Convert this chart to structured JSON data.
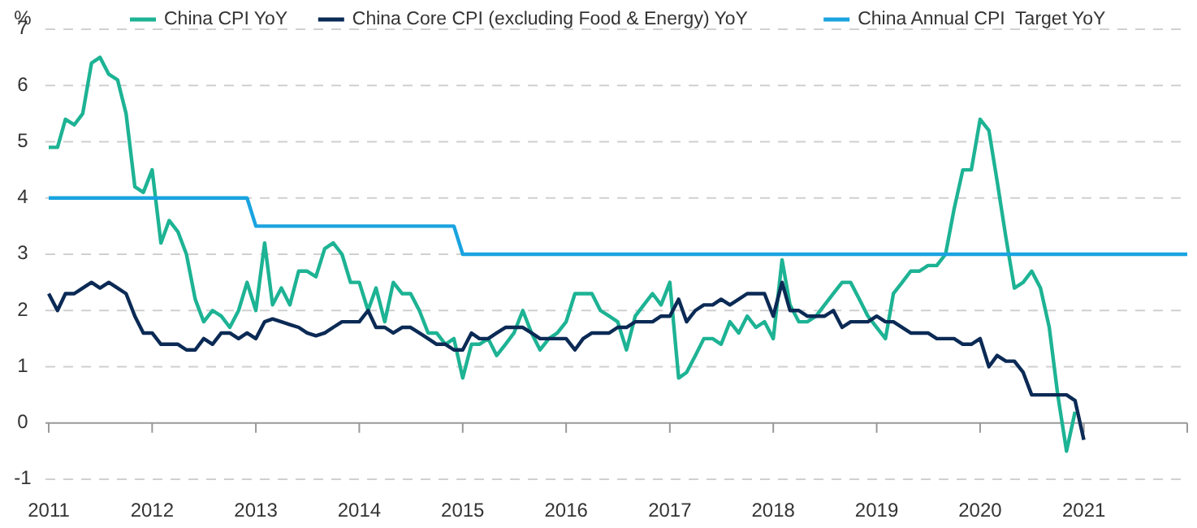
{
  "chart_data": {
    "type": "line",
    "ylabel": "%",
    "legend": "top",
    "grid": "y",
    "line_style": "solid",
    "x": [
      "2011-01",
      "2011-02",
      "2011-03",
      "2011-04",
      "2011-05",
      "2011-06",
      "2011-07",
      "2011-08",
      "2011-09",
      "2011-10",
      "2011-11",
      "2011-12",
      "2012-01",
      "2012-02",
      "2012-03",
      "2012-04",
      "2012-05",
      "2012-06",
      "2012-07",
      "2012-08",
      "2012-09",
      "2012-10",
      "2012-11",
      "2012-12",
      "2013-01",
      "2013-02",
      "2013-03",
      "2013-04",
      "2013-05",
      "2013-06",
      "2013-07",
      "2013-08",
      "2013-09",
      "2013-10",
      "2013-11",
      "2013-12",
      "2014-01",
      "2014-02",
      "2014-03",
      "2014-04",
      "2014-05",
      "2014-06",
      "2014-07",
      "2014-08",
      "2014-09",
      "2014-10",
      "2014-11",
      "2014-12",
      "2015-01",
      "2015-02",
      "2015-03",
      "2015-04",
      "2015-05",
      "2015-06",
      "2015-07",
      "2015-08",
      "2015-09",
      "2015-10",
      "2015-11",
      "2015-12",
      "2016-01",
      "2016-02",
      "2016-03",
      "2016-04",
      "2016-05",
      "2016-06",
      "2016-07",
      "2016-08",
      "2016-09",
      "2016-10",
      "2016-11",
      "2016-12",
      "2017-01",
      "2017-02",
      "2017-03",
      "2017-04",
      "2017-05",
      "2017-06",
      "2017-07",
      "2017-08",
      "2017-09",
      "2017-10",
      "2017-11",
      "2017-12",
      "2018-01",
      "2018-02",
      "2018-03",
      "2018-04",
      "2018-05",
      "2018-06",
      "2018-07",
      "2018-08",
      "2018-09",
      "2018-10",
      "2018-11",
      "2018-12",
      "2019-01",
      "2019-02",
      "2019-03",
      "2019-04",
      "2019-05",
      "2019-06",
      "2019-07",
      "2019-08",
      "2019-09",
      "2019-10",
      "2019-11",
      "2019-12",
      "2020-01",
      "2020-02",
      "2020-03",
      "2020-04",
      "2020-05",
      "2020-06",
      "2020-07",
      "2020-08",
      "2020-09",
      "2020-10",
      "2020-11",
      "2020-12",
      "2021-01"
    ],
    "xlim": [
      "2011-01",
      "2022-01"
    ],
    "xticks": [
      {
        "value": "2011-01",
        "label": "2011"
      },
      {
        "value": "2012-01",
        "label": "2012"
      },
      {
        "value": "2013-01",
        "label": "2013"
      },
      {
        "value": "2014-01",
        "label": "2014"
      },
      {
        "value": "2015-01",
        "label": "2015"
      },
      {
        "value": "2016-01",
        "label": "2016"
      },
      {
        "value": "2017-01",
        "label": "2017"
      },
      {
        "value": "2018-01",
        "label": "2018"
      },
      {
        "value": "2019-01",
        "label": "2019"
      },
      {
        "value": "2020-01",
        "label": "2020"
      },
      {
        "value": "2021-01",
        "label": "2021"
      },
      {
        "value": "2022-01",
        "label": null
      }
    ],
    "ylim": [
      -1,
      7
    ],
    "yticks": [
      -1,
      0,
      1,
      2,
      3,
      4,
      5,
      6,
      7
    ],
    "series": [
      {
        "name": "China CPI YoY",
        "color": "#1db394",
        "values": [
          4.9,
          4.9,
          5.4,
          5.3,
          5.5,
          6.4,
          6.5,
          6.2,
          6.1,
          5.5,
          4.2,
          4.1,
          4.5,
          3.2,
          3.6,
          3.4,
          3.0,
          2.2,
          1.8,
          2.0,
          1.9,
          1.7,
          2.0,
          2.5,
          2.0,
          3.2,
          2.1,
          2.4,
          2.1,
          2.7,
          2.7,
          2.6,
          3.1,
          3.2,
          3.0,
          2.5,
          2.5,
          2.0,
          2.4,
          1.8,
          2.5,
          2.3,
          2.3,
          2.0,
          1.6,
          1.6,
          1.4,
          1.5,
          0.8,
          1.4,
          1.4,
          1.5,
          1.2,
          1.4,
          1.6,
          2.0,
          1.6,
          1.3,
          1.5,
          1.6,
          1.8,
          2.3,
          2.3,
          2.3,
          2.0,
          1.9,
          1.8,
          1.3,
          1.9,
          2.1,
          2.3,
          2.1,
          2.5,
          0.8,
          0.9,
          1.2,
          1.5,
          1.5,
          1.4,
          1.8,
          1.6,
          1.9,
          1.7,
          1.8,
          1.5,
          2.9,
          2.1,
          1.8,
          1.8,
          1.9,
          2.1,
          2.3,
          2.5,
          2.5,
          2.2,
          1.9,
          1.7,
          1.5,
          2.3,
          2.5,
          2.7,
          2.7,
          2.8,
          2.8,
          3.0,
          3.8,
          4.5,
          4.5,
          5.4,
          5.2,
          4.3,
          3.3,
          2.4,
          2.5,
          2.7,
          2.4,
          1.7,
          0.5,
          -0.5,
          0.2,
          null
        ]
      },
      {
        "name": "China Core CPI (excluding Food & Energy) YoY",
        "color": "#0b2a55",
        "values": [
          2.3,
          2.0,
          2.3,
          2.3,
          2.4,
          2.5,
          2.4,
          2.5,
          2.4,
          2.3,
          1.9,
          1.6,
          1.6,
          1.4,
          1.4,
          1.4,
          1.3,
          1.3,
          1.5,
          1.4,
          1.6,
          1.6,
          1.5,
          1.6,
          1.5,
          1.8,
          1.85,
          1.8,
          1.75,
          1.7,
          1.6,
          1.55,
          1.6,
          1.7,
          1.8,
          1.8,
          1.8,
          2.0,
          1.7,
          1.7,
          1.6,
          1.7,
          1.7,
          1.6,
          1.5,
          1.4,
          1.4,
          1.3,
          1.3,
          1.6,
          1.5,
          1.5,
          1.6,
          1.7,
          1.7,
          1.7,
          1.6,
          1.5,
          1.5,
          1.5,
          1.5,
          1.3,
          1.5,
          1.6,
          1.6,
          1.6,
          1.7,
          1.7,
          1.8,
          1.8,
          1.8,
          1.9,
          1.9,
          2.2,
          1.8,
          2.0,
          2.1,
          2.1,
          2.2,
          2.1,
          2.2,
          2.3,
          2.3,
          2.3,
          1.9,
          2.5,
          2.0,
          2.0,
          1.9,
          1.9,
          1.9,
          2.0,
          1.7,
          1.8,
          1.8,
          1.8,
          1.9,
          1.8,
          1.8,
          1.7,
          1.6,
          1.6,
          1.6,
          1.5,
          1.5,
          1.5,
          1.4,
          1.4,
          1.5,
          1.0,
          1.2,
          1.1,
          1.1,
          0.9,
          0.5,
          0.5,
          0.5,
          0.5,
          0.5,
          0.4,
          -0.3
        ]
      },
      {
        "name": "China Annual CPI  Target YoY",
        "color": "#1aa3e0",
        "x": [
          "2011-01",
          "2012-12",
          "2013-01",
          "2014-12",
          "2015-01",
          "2022-01"
        ],
        "values": [
          4,
          4,
          3.5,
          3.5,
          3,
          3
        ]
      }
    ]
  }
}
